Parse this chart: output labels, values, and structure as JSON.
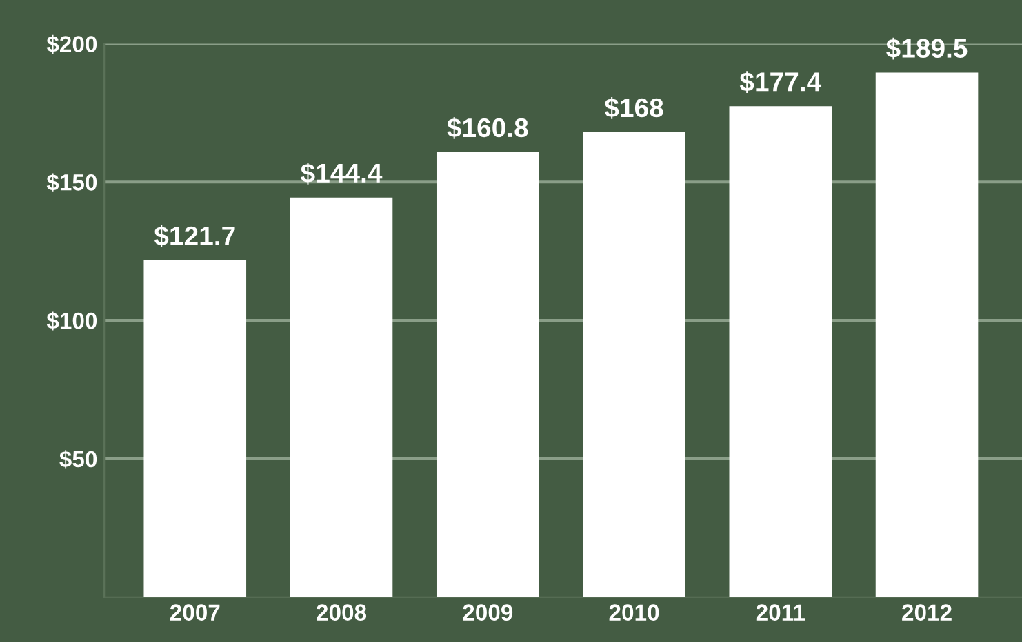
{
  "chart_data": {
    "type": "bar",
    "categories": [
      "2007",
      "2008",
      "2009",
      "2010",
      "2011",
      "2012"
    ],
    "values": [
      121.7,
      144.4,
      160.8,
      168,
      177.4,
      189.5
    ],
    "value_labels": [
      "$121.7",
      "$144.4",
      "$160.8",
      "$168",
      "$177.4",
      "$189.5"
    ],
    "color": "#ffffff",
    "ylim": [
      0,
      200
    ],
    "yticks": [
      {
        "value": 50,
        "label": "$50"
      },
      {
        "value": 100,
        "label": "$100"
      },
      {
        "value": 150,
        "label": "$150"
      },
      {
        "value": 200,
        "label": "$200"
      }
    ],
    "grid": "y"
  }
}
